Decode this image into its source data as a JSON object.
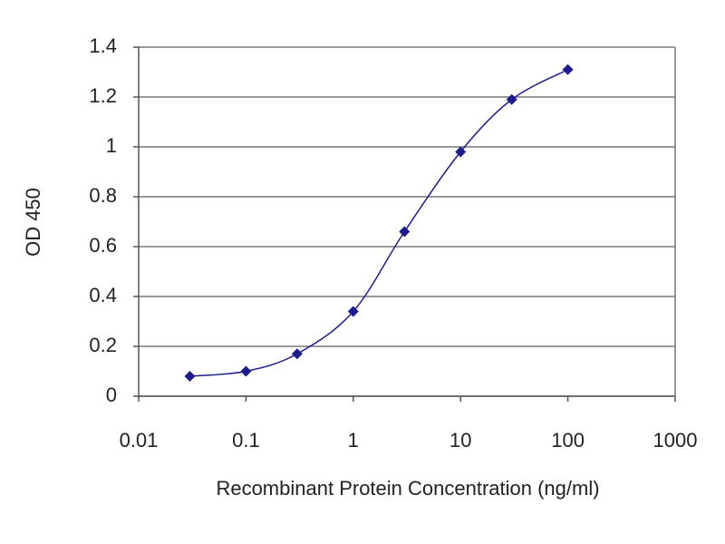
{
  "chart_data": {
    "type": "line",
    "x_label": "Recombinant Protein Concentration (ng/ml)",
    "y_label": "OD 450",
    "x": [
      0.03,
      0.1,
      0.3,
      1,
      3,
      10,
      30,
      100
    ],
    "values": [
      0.08,
      0.1,
      0.17,
      0.34,
      0.66,
      0.98,
      1.19,
      1.31
    ],
    "color": "#1c1c8f",
    "xlim": [
      0.01,
      1000
    ],
    "xticks": [
      0.01,
      0.1,
      1,
      10,
      100,
      1000
    ],
    "log_x": true,
    "ylim": [
      0,
      1.4
    ],
    "yticks": [
      0,
      0.2,
      0.4,
      0.6,
      0.8,
      1,
      1.2,
      1.4
    ],
    "grid": true
  }
}
